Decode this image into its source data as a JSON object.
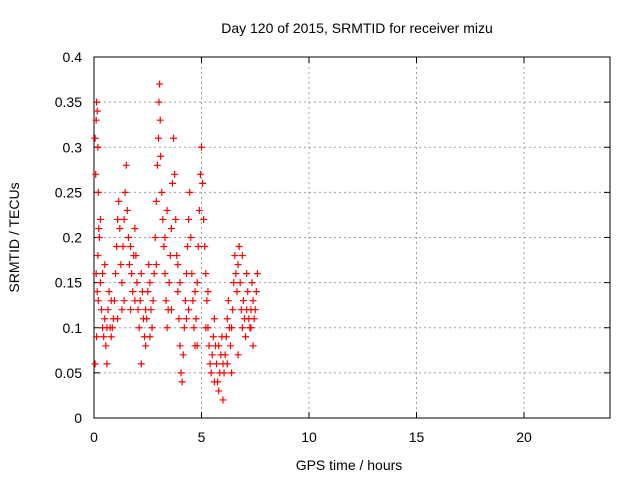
{
  "chart_data": {
    "type": "scatter",
    "title": "Day 120 of 2015, SRMTID for receiver mizu",
    "xlabel": "GPS time / hours",
    "ylabel": "SRMTID / TECUs",
    "xlim": [
      0,
      24
    ],
    "ylim": [
      0,
      0.4
    ],
    "xticks": [
      0,
      5,
      10,
      15,
      20
    ],
    "xtick_labels": [
      "0",
      "5",
      "10",
      "15",
      "20"
    ],
    "yticks": [
      0,
      0.05,
      0.1,
      0.15,
      0.2,
      0.25,
      0.3,
      0.35,
      0.4
    ],
    "ytick_labels": [
      "0",
      "0.05",
      "0.1",
      "0.15",
      "0.2",
      "0.25",
      "0.3",
      "0.35",
      "0.4"
    ],
    "grid": true,
    "marker": "plus",
    "marker_color": "#ff0000",
    "series": [
      {
        "name": "SRMTID",
        "points": [
          [
            0.05,
            0.31
          ],
          [
            0.08,
            0.27
          ],
          [
            0.1,
            0.33
          ],
          [
            0.12,
            0.35
          ],
          [
            0.15,
            0.34
          ],
          [
            0.18,
            0.3
          ],
          [
            0.2,
            0.25
          ],
          [
            0.22,
            0.21
          ],
          [
            0.1,
            0.16
          ],
          [
            0.15,
            0.14
          ],
          [
            0.05,
            0.06
          ],
          [
            0.12,
            0.09
          ],
          [
            0.18,
            0.18
          ],
          [
            0.25,
            0.2
          ],
          [
            0.3,
            0.15
          ],
          [
            0.35,
            0.12
          ],
          [
            0.4,
            0.1
          ],
          [
            0.45,
            0.09
          ],
          [
            0.5,
            0.11
          ],
          [
            0.55,
            0.08
          ],
          [
            0.6,
            0.1
          ],
          [
            0.65,
            0.12
          ],
          [
            0.7,
            0.14
          ],
          [
            0.75,
            0.1
          ],
          [
            0.8,
            0.09
          ],
          [
            0.85,
            0.1
          ],
          [
            0.9,
            0.11
          ],
          [
            0.95,
            0.13
          ],
          [
            1.0,
            0.16
          ],
          [
            1.05,
            0.19
          ],
          [
            1.1,
            0.22
          ],
          [
            1.15,
            0.24
          ],
          [
            1.2,
            0.21
          ],
          [
            1.25,
            0.17
          ],
          [
            1.3,
            0.15
          ],
          [
            1.35,
            0.19
          ],
          [
            1.4,
            0.22
          ],
          [
            1.45,
            0.25
          ],
          [
            1.5,
            0.28
          ],
          [
            1.55,
            0.23
          ],
          [
            1.6,
            0.2
          ],
          [
            1.65,
            0.17
          ],
          [
            1.7,
            0.19
          ],
          [
            1.75,
            0.16
          ],
          [
            1.8,
            0.14
          ],
          [
            1.85,
            0.18
          ],
          [
            1.9,
            0.21
          ],
          [
            1.95,
            0.18
          ],
          [
            2.0,
            0.15
          ],
          [
            2.05,
            0.12
          ],
          [
            2.1,
            0.1
          ],
          [
            2.15,
            0.13
          ],
          [
            2.2,
            0.16
          ],
          [
            2.25,
            0.14
          ],
          [
            2.3,
            0.11
          ],
          [
            2.35,
            0.09
          ],
          [
            2.4,
            0.08
          ],
          [
            2.45,
            0.11
          ],
          [
            2.5,
            0.14
          ],
          [
            2.55,
            0.17
          ],
          [
            2.6,
            0.15
          ],
          [
            2.65,
            0.12
          ],
          [
            2.7,
            0.1
          ],
          [
            2.75,
            0.13
          ],
          [
            2.8,
            0.16
          ],
          [
            2.85,
            0.2
          ],
          [
            2.9,
            0.24
          ],
          [
            2.95,
            0.28
          ],
          [
            3.0,
            0.31
          ],
          [
            3.02,
            0.35
          ],
          [
            3.05,
            0.37
          ],
          [
            3.08,
            0.33
          ],
          [
            3.1,
            0.29
          ],
          [
            3.15,
            0.25
          ],
          [
            3.2,
            0.22
          ],
          [
            3.25,
            0.19
          ],
          [
            3.3,
            0.16
          ],
          [
            3.35,
            0.13
          ],
          [
            3.4,
            0.1
          ],
          [
            3.45,
            0.12
          ],
          [
            3.5,
            0.15
          ],
          [
            3.55,
            0.18
          ],
          [
            3.6,
            0.21
          ],
          [
            3.65,
            0.26
          ],
          [
            3.7,
            0.31
          ],
          [
            3.75,
            0.27
          ],
          [
            3.8,
            0.22
          ],
          [
            3.85,
            0.18
          ],
          [
            3.9,
            0.14
          ],
          [
            3.95,
            0.11
          ],
          [
            4.0,
            0.08
          ],
          [
            4.05,
            0.05
          ],
          [
            4.1,
            0.04
          ],
          [
            4.15,
            0.07
          ],
          [
            4.2,
            0.1
          ],
          [
            4.25,
            0.13
          ],
          [
            4.3,
            0.16
          ],
          [
            4.35,
            0.19
          ],
          [
            4.4,
            0.22
          ],
          [
            4.45,
            0.25
          ],
          [
            4.5,
            0.2
          ],
          [
            4.55,
            0.16
          ],
          [
            4.6,
            0.13
          ],
          [
            4.65,
            0.1
          ],
          [
            4.7,
            0.08
          ],
          [
            4.75,
            0.11
          ],
          [
            4.8,
            0.15
          ],
          [
            4.85,
            0.19
          ],
          [
            4.9,
            0.23
          ],
          [
            4.95,
            0.27
          ],
          [
            5.0,
            0.3
          ],
          [
            5.05,
            0.26
          ],
          [
            5.1,
            0.22
          ],
          [
            5.15,
            0.19
          ],
          [
            5.2,
            0.16
          ],
          [
            5.25,
            0.13
          ],
          [
            5.3,
            0.1
          ],
          [
            5.35,
            0.08
          ],
          [
            5.4,
            0.06
          ],
          [
            5.45,
            0.05
          ],
          [
            5.5,
            0.07
          ],
          [
            5.55,
            0.09
          ],
          [
            5.6,
            0.11
          ],
          [
            5.65,
            0.08
          ],
          [
            5.7,
            0.06
          ],
          [
            5.75,
            0.04
          ],
          [
            5.8,
            0.03
          ],
          [
            5.85,
            0.05
          ],
          [
            5.9,
            0.07
          ],
          [
            5.95,
            0.09
          ],
          [
            6.0,
            0.06
          ],
          [
            6.05,
            0.05
          ],
          [
            6.1,
            0.07
          ],
          [
            6.15,
            0.09
          ],
          [
            6.2,
            0.11
          ],
          [
            6.25,
            0.13
          ],
          [
            6.3,
            0.1
          ],
          [
            6.35,
            0.08
          ],
          [
            6.4,
            0.1
          ],
          [
            6.45,
            0.12
          ],
          [
            6.5,
            0.15
          ],
          [
            6.55,
            0.18
          ],
          [
            6.6,
            0.16
          ],
          [
            6.65,
            0.14
          ],
          [
            6.7,
            0.17
          ],
          [
            6.75,
            0.19
          ],
          [
            6.8,
            0.15
          ],
          [
            6.85,
            0.12
          ],
          [
            6.9,
            0.1
          ],
          [
            6.95,
            0.13
          ],
          [
            7.0,
            0.11
          ],
          [
            7.05,
            0.09
          ],
          [
            7.1,
            0.12
          ],
          [
            7.15,
            0.14
          ],
          [
            7.2,
            0.11
          ],
          [
            7.25,
            0.1
          ],
          [
            7.3,
            0.12
          ],
          [
            7.35,
            0.15
          ],
          [
            7.4,
            0.13
          ],
          [
            7.45,
            0.11
          ],
          [
            7.5,
            0.12
          ],
          [
            7.55,
            0.14
          ],
          [
            7.6,
            0.16
          ],
          [
            0.3,
            0.22
          ],
          [
            0.4,
            0.16
          ],
          [
            0.6,
            0.06
          ],
          [
            1.1,
            0.11
          ],
          [
            1.4,
            0.13
          ],
          [
            1.7,
            0.12
          ],
          [
            2.2,
            0.06
          ],
          [
            2.6,
            0.09
          ],
          [
            3.3,
            0.2
          ],
          [
            3.6,
            0.12
          ],
          [
            3.9,
            0.17
          ],
          [
            4.4,
            0.12
          ],
          [
            4.7,
            0.14
          ],
          [
            5.2,
            0.1
          ],
          [
            5.6,
            0.04
          ],
          [
            6.0,
            0.02
          ],
          [
            6.4,
            0.05
          ],
          [
            6.7,
            0.07
          ],
          [
            7.1,
            0.16
          ],
          [
            7.4,
            0.08
          ],
          [
            0.2,
            0.13
          ],
          [
            0.5,
            0.17
          ],
          [
            0.8,
            0.13
          ],
          [
            1.3,
            0.12
          ],
          [
            1.9,
            0.13
          ],
          [
            2.4,
            0.12
          ],
          [
            2.9,
            0.17
          ],
          [
            3.4,
            0.23
          ],
          [
            4.0,
            0.15
          ],
          [
            4.3,
            0.11
          ],
          [
            4.8,
            0.08
          ],
          [
            5.3,
            0.14
          ],
          [
            5.8,
            0.08
          ],
          [
            6.2,
            0.06
          ],
          [
            6.9,
            0.18
          ],
          [
            7.3,
            0.1
          ]
        ]
      }
    ]
  }
}
